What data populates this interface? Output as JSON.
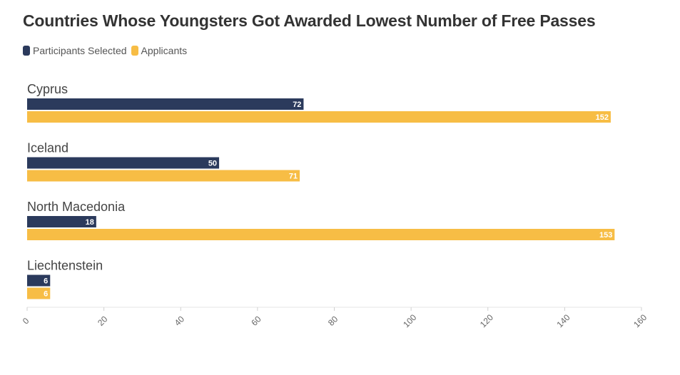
{
  "chart_data": {
    "type": "bar",
    "orientation": "horizontal",
    "title": "Countries Whose Youngsters Got Awarded Lowest Number of Free Passes",
    "categories": [
      "Cyprus",
      "Iceland",
      "North Macedonia",
      "Liechtenstein"
    ],
    "series": [
      {
        "name": "Participants Selected",
        "color": "#2b3a5c",
        "values": [
          72,
          50,
          18,
          6
        ]
      },
      {
        "name": "Applicants",
        "color": "#f7bd45",
        "values": [
          152,
          71,
          153,
          6
        ]
      }
    ],
    "xlim": [
      0,
      160
    ],
    "xticks": [
      "0",
      "20",
      "40",
      "60",
      "80",
      "100",
      "120",
      "140",
      "160"
    ],
    "xlabel": "",
    "ylabel": "",
    "grid": false,
    "legend": "top-left",
    "data_labels": true
  }
}
